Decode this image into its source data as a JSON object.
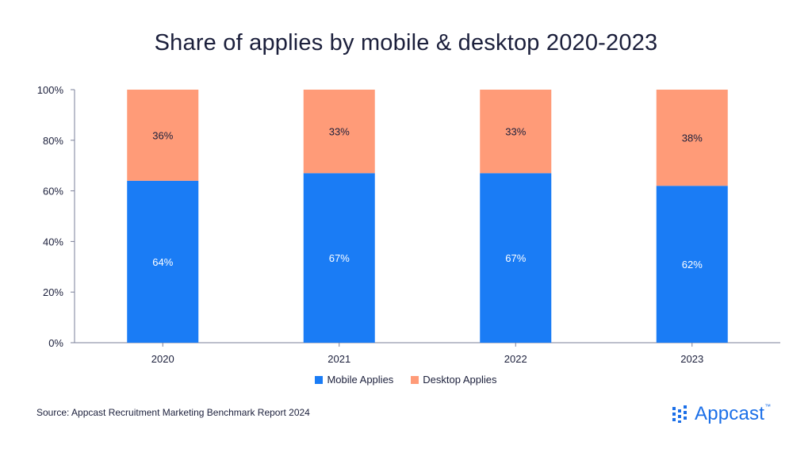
{
  "colors": {
    "mobile": "#1a7cf5",
    "desktop": "#ff9b78",
    "text": "#1b1f3b",
    "brand": "#1b6fe8"
  },
  "chart_data": {
    "type": "bar",
    "stacked": true,
    "title": "Share of applies by mobile & desktop 2020-2023",
    "categories": [
      "2020",
      "2021",
      "2022",
      "2023"
    ],
    "series": [
      {
        "name": "Mobile Applies",
        "values": [
          64,
          67,
          67,
          62
        ],
        "labels": [
          "64%",
          "67%",
          "67%",
          "62%"
        ]
      },
      {
        "name": "Desktop Applies",
        "values": [
          36,
          33,
          33,
          38
        ],
        "labels": [
          "36%",
          "33%",
          "33%",
          "38%"
        ]
      }
    ],
    "ylim": [
      0,
      100
    ],
    "yticks": [
      "0%",
      "20%",
      "40%",
      "60%",
      "80%",
      "100%"
    ],
    "legend_position": "bottom-center",
    "grid": false
  },
  "footer": {
    "source": "Source: Appcast Recruitment Marketing Benchmark Report 2024",
    "brand": "Appcast",
    "trademark": "™"
  }
}
